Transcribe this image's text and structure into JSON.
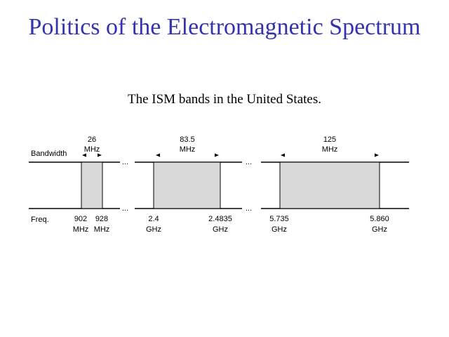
{
  "page": {
    "title": "Politics of the Electromagnetic Spectrum",
    "caption": "The ISM bands in the United States."
  },
  "diagram": {
    "row_labels": {
      "bandwidth": "Bandwidth",
      "freq": "Freq."
    },
    "fill_color": "#d9d9d9",
    "line_color": "#000000",
    "bands": [
      {
        "bandwidth": [
          "26",
          "MHz"
        ],
        "low": [
          "902",
          "MHz"
        ],
        "high": [
          "928",
          "MHz"
        ]
      },
      {
        "bandwidth": [
          "83.5",
          "MHz"
        ],
        "low": [
          "2.4",
          "GHz"
        ],
        "high": [
          "2.4835",
          "GHz"
        ]
      },
      {
        "bandwidth": [
          "125",
          "MHz"
        ],
        "low": [
          "5.735",
          "GHz"
        ],
        "high": [
          "5.860",
          "GHz"
        ]
      }
    ],
    "gap_marker": "..."
  }
}
